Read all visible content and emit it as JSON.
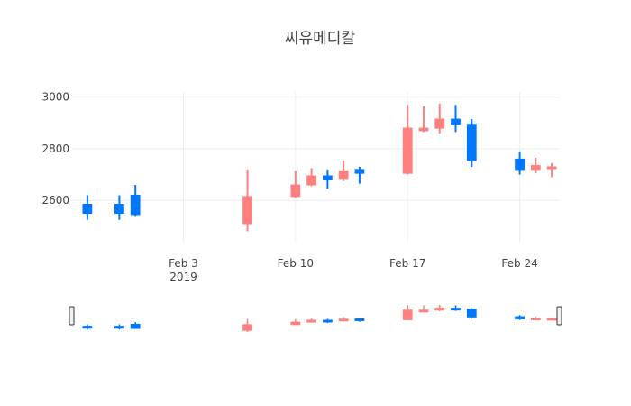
{
  "chart_data": {
    "type": "candlestick",
    "title": "씨유메디칼",
    "xlabel": "",
    "ylabel": "",
    "ylim": [
      2440,
      3020
    ],
    "xlim": [
      "2019-01-28",
      "2019-02-26"
    ],
    "yticks": [
      2600,
      2800,
      3000
    ],
    "xticks": [
      {
        "date": "2019-02-03",
        "label": "Feb 3",
        "sublabel": "2019"
      },
      {
        "date": "2019-02-10",
        "label": "Feb 10",
        "sublabel": ""
      },
      {
        "date": "2019-02-17",
        "label": "Feb 17",
        "sublabel": ""
      },
      {
        "date": "2019-02-24",
        "label": "Feb 24",
        "sublabel": ""
      }
    ],
    "grid": true,
    "rangeslider": true,
    "colors": {
      "increasing": "#ff7f7f",
      "decreasing": "#0077ff",
      "grid": "#eeeeee"
    },
    "candles": [
      {
        "date": "2019-01-28",
        "open": 2585,
        "high": 2620,
        "low": 2525,
        "close": 2550
      },
      {
        "date": "2019-01-30",
        "open": 2585,
        "high": 2620,
        "low": 2525,
        "close": 2550
      },
      {
        "date": "2019-01-31",
        "open": 2620,
        "high": 2660,
        "low": 2540,
        "close": 2545
      },
      {
        "date": "2019-02-07",
        "open": 2510,
        "high": 2720,
        "low": 2480,
        "close": 2615
      },
      {
        "date": "2019-02-10",
        "open": 2615,
        "high": 2715,
        "low": 2610,
        "close": 2660
      },
      {
        "date": "2019-02-11",
        "open": 2660,
        "high": 2725,
        "low": 2655,
        "close": 2695
      },
      {
        "date": "2019-02-12",
        "open": 2695,
        "high": 2720,
        "low": 2645,
        "close": 2680
      },
      {
        "date": "2019-02-13",
        "open": 2685,
        "high": 2755,
        "low": 2675,
        "close": 2715
      },
      {
        "date": "2019-02-14",
        "open": 2720,
        "high": 2730,
        "low": 2665,
        "close": 2705
      },
      {
        "date": "2019-02-17",
        "open": 2705,
        "high": 2970,
        "low": 2700,
        "close": 2880
      },
      {
        "date": "2019-02-18",
        "open": 2870,
        "high": 2965,
        "low": 2865,
        "close": 2880
      },
      {
        "date": "2019-02-19",
        "open": 2880,
        "high": 2975,
        "low": 2860,
        "close": 2915
      },
      {
        "date": "2019-02-20",
        "open": 2915,
        "high": 2970,
        "low": 2865,
        "close": 2895
      },
      {
        "date": "2019-02-21",
        "open": 2895,
        "high": 2915,
        "low": 2730,
        "close": 2755
      },
      {
        "date": "2019-02-24",
        "open": 2760,
        "high": 2790,
        "low": 2700,
        "close": 2720
      },
      {
        "date": "2019-02-25",
        "open": 2720,
        "high": 2765,
        "low": 2705,
        "close": 2735
      },
      {
        "date": "2019-02-26",
        "open": 2725,
        "high": 2745,
        "low": 2690,
        "close": 2730
      }
    ]
  }
}
